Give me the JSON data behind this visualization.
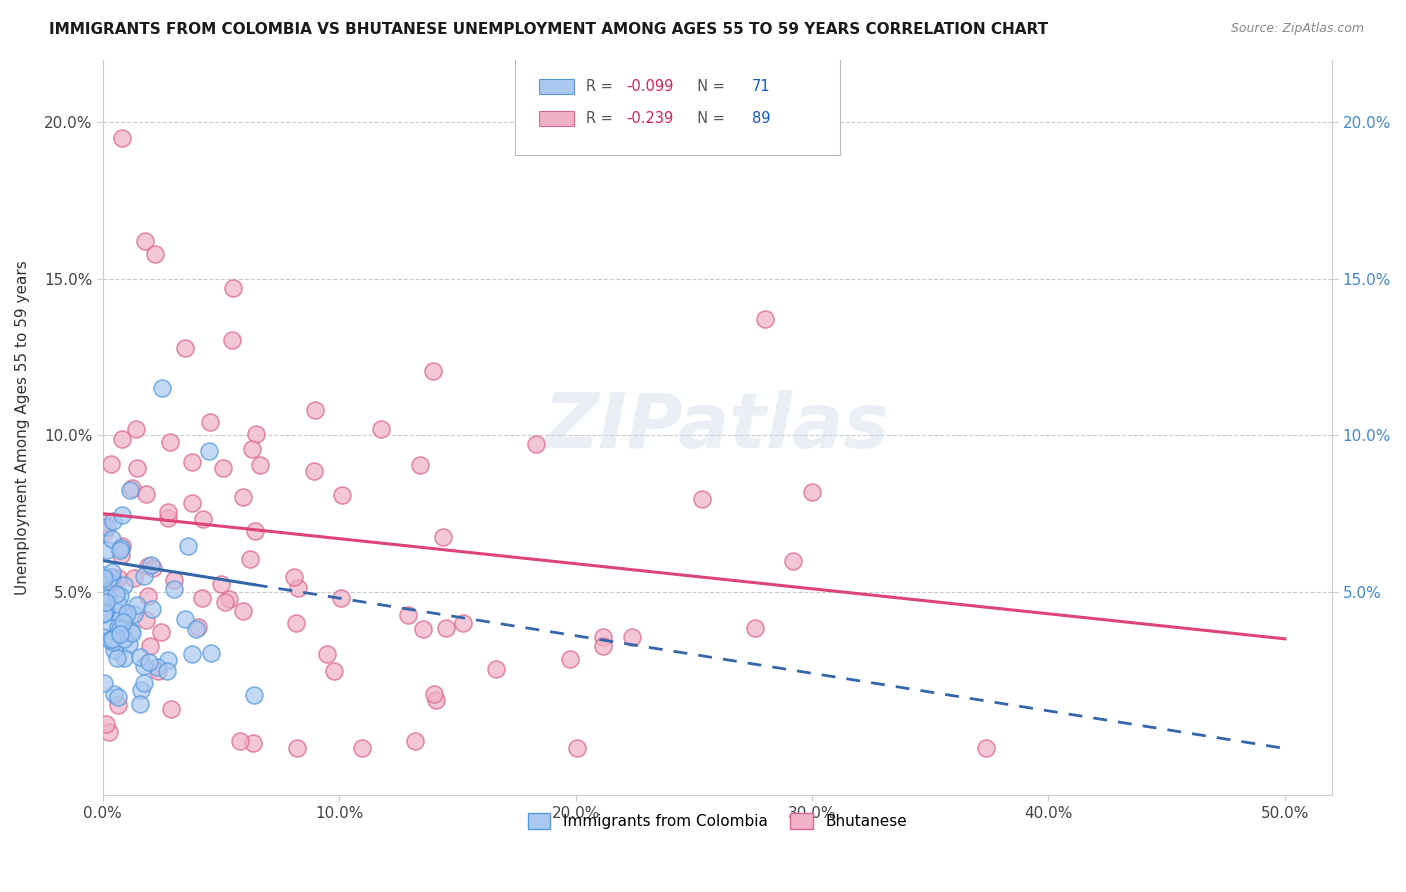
{
  "title": "IMMIGRANTS FROM COLOMBIA VS BHUTANESE UNEMPLOYMENT AMONG AGES 55 TO 59 YEARS CORRELATION CHART",
  "source": "Source: ZipAtlas.com",
  "ylabel": "Unemployment Among Ages 55 to 59 years",
  "xlim": [
    0.0,
    0.52
  ],
  "ylim": [
    -0.015,
    0.22
  ],
  "xticks": [
    0.0,
    0.1,
    0.2,
    0.3,
    0.4,
    0.5
  ],
  "xticklabels": [
    "0.0%",
    "10.0%",
    "20.0%",
    "30.0%",
    "40.0%",
    "50.0%"
  ],
  "yticks": [
    0.05,
    0.1,
    0.15,
    0.2
  ],
  "yticklabels_left": [
    "5.0%",
    "10.0%",
    "15.0%",
    "20.0%"
  ],
  "yticklabels_right": [
    "5.0%",
    "10.0%",
    "15.0%",
    "20.0%"
  ],
  "colombia_color": "#aac8f0",
  "colombia_edge": "#5599dd",
  "bhutanese_color": "#f0b0c8",
  "bhutanese_edge": "#dd6688",
  "colombia_R": -0.099,
  "colombia_N": 71,
  "bhutanese_R": -0.239,
  "bhutanese_N": 89,
  "watermark": "ZIPatlas",
  "legend_labels": [
    "Immigrants from Colombia",
    "Bhutanese"
  ],
  "colombia_seed": 12,
  "bhutanese_seed": 99,
  "background_color": "#ffffff",
  "grid_color": "#cccccc",
  "title_color": "#1a1a1a",
  "axis_label_color": "#333333",
  "right_tick_color": "#4488cc",
  "source_color": "#888888",
  "line_colombia_color": "#3366aa",
  "line_bhutanese_color": "#dd4477"
}
